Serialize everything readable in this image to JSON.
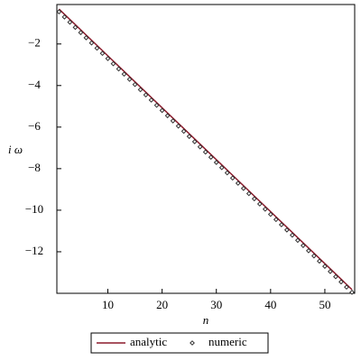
{
  "chart_data": {
    "type": "line",
    "x_label": "n",
    "y_label": "i ω",
    "xlim": [
      0.6,
      55.5
    ],
    "ylim": [
      -14,
      -0.1
    ],
    "xticks": [
      10,
      20,
      30,
      40,
      50
    ],
    "yticks": [
      {
        "value": -2,
        "label": "−2"
      },
      {
        "value": -4,
        "label": "−4"
      },
      {
        "value": -6,
        "label": "−6"
      },
      {
        "value": -8,
        "label": "−8"
      },
      {
        "value": -10,
        "label": "−10"
      },
      {
        "value": -12,
        "label": "−12"
      }
    ],
    "series": [
      {
        "name": "analytic",
        "color": "#8b1a2b",
        "style": "line",
        "x": [
          1,
          55
        ],
        "values": [
          -0.32,
          -13.82
        ]
      },
      {
        "name": "numeric",
        "color": "#333333",
        "style": "diamond",
        "x": [
          1,
          2,
          3,
          4,
          5,
          6,
          7,
          8,
          9,
          10,
          11,
          12,
          13,
          14,
          15,
          16,
          17,
          18,
          19,
          20,
          21,
          22,
          23,
          24,
          25,
          26,
          27,
          28,
          29,
          30,
          31,
          32,
          33,
          34,
          35,
          36,
          37,
          38,
          39,
          40,
          41,
          42,
          43,
          44,
          45,
          46,
          47,
          48,
          49,
          50,
          51,
          52,
          53,
          54,
          55
        ],
        "values": [
          -0.45,
          -0.7,
          -0.95,
          -1.2,
          -1.45,
          -1.7,
          -1.95,
          -2.2,
          -2.45,
          -2.7,
          -2.95,
          -3.2,
          -3.45,
          -3.7,
          -3.95,
          -4.2,
          -4.45,
          -4.7,
          -4.95,
          -5.2,
          -5.45,
          -5.7,
          -5.95,
          -6.2,
          -6.45,
          -6.7,
          -6.95,
          -7.2,
          -7.45,
          -7.7,
          -7.95,
          -8.2,
          -8.45,
          -8.7,
          -8.95,
          -9.2,
          -9.45,
          -9.7,
          -9.95,
          -10.2,
          -10.45,
          -10.7,
          -10.95,
          -11.2,
          -11.45,
          -11.7,
          -11.95,
          -12.2,
          -12.45,
          -12.7,
          -12.95,
          -13.2,
          -13.45,
          -13.7,
          -13.95
        ]
      }
    ]
  }
}
